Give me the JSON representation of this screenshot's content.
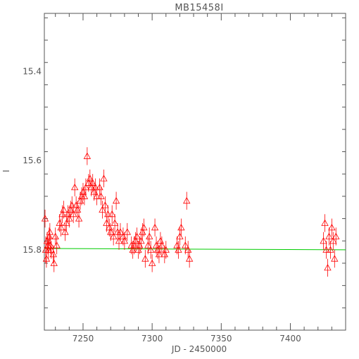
{
  "chart_data": {
    "type": "scatter",
    "title": "MB15458I",
    "xlabel": "JD - 2450000",
    "ylabel": "I",
    "xlim": [
      7222,
      7440
    ],
    "ylim": [
      15.98,
      15.27
    ],
    "y_inverted": true,
    "x_ticks": [
      7250,
      7300,
      7350,
      7400
    ],
    "y_ticks": [
      15.4,
      15.6,
      15.8
    ],
    "x_tick_labels": [
      "7250",
      "7300",
      "7350",
      "7400"
    ],
    "y_tick_labels": [
      "15.4",
      "15.6",
      "15.8"
    ],
    "grid": false,
    "colors": {
      "points": "#ff0000",
      "model": "#00cc00",
      "axes": "#555555"
    },
    "marker": "triangle-open-with-errorbars",
    "model_line": {
      "x": [
        7222,
        7440
      ],
      "y": [
        15.797,
        15.8
      ]
    },
    "points": [
      {
        "x": 7222.5,
        "y": 15.73,
        "err": 0.02
      },
      {
        "x": 7223.0,
        "y": 15.8,
        "err": 0.03
      },
      {
        "x": 7223.5,
        "y": 15.82,
        "err": 0.02
      },
      {
        "x": 7224.0,
        "y": 15.78,
        "err": 0.02
      },
      {
        "x": 7224.5,
        "y": 15.79,
        "err": 0.02
      },
      {
        "x": 7225.0,
        "y": 15.8,
        "err": 0.02
      },
      {
        "x": 7225.5,
        "y": 15.77,
        "err": 0.02
      },
      {
        "x": 7226.0,
        "y": 15.76,
        "err": 0.02
      },
      {
        "x": 7226.5,
        "y": 15.79,
        "err": 0.02
      },
      {
        "x": 7227.0,
        "y": 15.8,
        "err": 0.02
      },
      {
        "x": 7228.5,
        "y": 15.81,
        "err": 0.02
      },
      {
        "x": 7229.0,
        "y": 15.83,
        "err": 0.02
      },
      {
        "x": 7230.0,
        "y": 15.77,
        "err": 0.02
      },
      {
        "x": 7231.0,
        "y": 15.79,
        "err": 0.02
      },
      {
        "x": 7233.0,
        "y": 15.74,
        "err": 0.02
      },
      {
        "x": 7234.0,
        "y": 15.75,
        "err": 0.02
      },
      {
        "x": 7235.0,
        "y": 15.72,
        "err": 0.02
      },
      {
        "x": 7236.0,
        "y": 15.71,
        "err": 0.02
      },
      {
        "x": 7237.0,
        "y": 15.76,
        "err": 0.02
      },
      {
        "x": 7238.0,
        "y": 15.74,
        "err": 0.02
      },
      {
        "x": 7239.0,
        "y": 15.72,
        "err": 0.02
      },
      {
        "x": 7240.0,
        "y": 15.73,
        "err": 0.02
      },
      {
        "x": 7241.0,
        "y": 15.71,
        "err": 0.02
      },
      {
        "x": 7242.0,
        "y": 15.7,
        "err": 0.02
      },
      {
        "x": 7243.0,
        "y": 15.72,
        "err": 0.02
      },
      {
        "x": 7244.0,
        "y": 15.66,
        "err": 0.02
      },
      {
        "x": 7245.0,
        "y": 15.7,
        "err": 0.02
      },
      {
        "x": 7246.0,
        "y": 15.71,
        "err": 0.02
      },
      {
        "x": 7247.0,
        "y": 15.73,
        "err": 0.02
      },
      {
        "x": 7248.0,
        "y": 15.69,
        "err": 0.02
      },
      {
        "x": 7249.0,
        "y": 15.68,
        "err": 0.02
      },
      {
        "x": 7250.0,
        "y": 15.67,
        "err": 0.02
      },
      {
        "x": 7251.0,
        "y": 15.68,
        "err": 0.02
      },
      {
        "x": 7252.0,
        "y": 15.66,
        "err": 0.02
      },
      {
        "x": 7253.0,
        "y": 15.59,
        "err": 0.02
      },
      {
        "x": 7254.0,
        "y": 15.65,
        "err": 0.02
      },
      {
        "x": 7255.0,
        "y": 15.64,
        "err": 0.02
      },
      {
        "x": 7256.0,
        "y": 15.66,
        "err": 0.02
      },
      {
        "x": 7257.0,
        "y": 15.65,
        "err": 0.02
      },
      {
        "x": 7258.0,
        "y": 15.67,
        "err": 0.02
      },
      {
        "x": 7259.0,
        "y": 15.66,
        "err": 0.02
      },
      {
        "x": 7260.0,
        "y": 15.68,
        "err": 0.02
      },
      {
        "x": 7262.0,
        "y": 15.66,
        "err": 0.02
      },
      {
        "x": 7263.0,
        "y": 15.68,
        "err": 0.02
      },
      {
        "x": 7264.0,
        "y": 15.71,
        "err": 0.02
      },
      {
        "x": 7265.0,
        "y": 15.64,
        "err": 0.02
      },
      {
        "x": 7266.0,
        "y": 15.7,
        "err": 0.02
      },
      {
        "x": 7267.0,
        "y": 15.74,
        "err": 0.02
      },
      {
        "x": 7268.0,
        "y": 15.72,
        "err": 0.02
      },
      {
        "x": 7269.0,
        "y": 15.75,
        "err": 0.02
      },
      {
        "x": 7270.0,
        "y": 15.76,
        "err": 0.02
      },
      {
        "x": 7271.0,
        "y": 15.72,
        "err": 0.02
      },
      {
        "x": 7272.0,
        "y": 15.77,
        "err": 0.02
      },
      {
        "x": 7273.0,
        "y": 15.74,
        "err": 0.02
      },
      {
        "x": 7274.0,
        "y": 15.69,
        "err": 0.02
      },
      {
        "x": 7275.0,
        "y": 15.76,
        "err": 0.02
      },
      {
        "x": 7276.0,
        "y": 15.78,
        "err": 0.02
      },
      {
        "x": 7277.0,
        "y": 15.76,
        "err": 0.02
      },
      {
        "x": 7279.0,
        "y": 15.77,
        "err": 0.02
      },
      {
        "x": 7280.0,
        "y": 15.78,
        "err": 0.02
      },
      {
        "x": 7282.0,
        "y": 15.76,
        "err": 0.02
      },
      {
        "x": 7285.0,
        "y": 15.79,
        "err": 0.02
      },
      {
        "x": 7286.0,
        "y": 15.8,
        "err": 0.02
      },
      {
        "x": 7287.0,
        "y": 15.79,
        "err": 0.02
      },
      {
        "x": 7288.0,
        "y": 15.78,
        "err": 0.02
      },
      {
        "x": 7289.0,
        "y": 15.77,
        "err": 0.02
      },
      {
        "x": 7290.0,
        "y": 15.8,
        "err": 0.02
      },
      {
        "x": 7291.0,
        "y": 15.79,
        "err": 0.02
      },
      {
        "x": 7292.0,
        "y": 15.78,
        "err": 0.02
      },
      {
        "x": 7293.0,
        "y": 15.76,
        "err": 0.02
      },
      {
        "x": 7294.0,
        "y": 15.75,
        "err": 0.02
      },
      {
        "x": 7295.0,
        "y": 15.82,
        "err": 0.02
      },
      {
        "x": 7297.0,
        "y": 15.79,
        "err": 0.02
      },
      {
        "x": 7298.0,
        "y": 15.77,
        "err": 0.02
      },
      {
        "x": 7299.0,
        "y": 15.8,
        "err": 0.02
      },
      {
        "x": 7300.0,
        "y": 15.83,
        "err": 0.02
      },
      {
        "x": 7302.0,
        "y": 15.75,
        "err": 0.02
      },
      {
        "x": 7303.0,
        "y": 15.79,
        "err": 0.02
      },
      {
        "x": 7304.0,
        "y": 15.8,
        "err": 0.02
      },
      {
        "x": 7305.0,
        "y": 15.81,
        "err": 0.02
      },
      {
        "x": 7306.0,
        "y": 15.78,
        "err": 0.02
      },
      {
        "x": 7307.0,
        "y": 15.79,
        "err": 0.02
      },
      {
        "x": 7309.0,
        "y": 15.81,
        "err": 0.02
      },
      {
        "x": 7310.0,
        "y": 15.8,
        "err": 0.02
      },
      {
        "x": 7318.0,
        "y": 15.79,
        "err": 0.02
      },
      {
        "x": 7319.0,
        "y": 15.8,
        "err": 0.02
      },
      {
        "x": 7320.0,
        "y": 15.77,
        "err": 0.02
      },
      {
        "x": 7321.0,
        "y": 15.75,
        "err": 0.02
      },
      {
        "x": 7324.0,
        "y": 15.79,
        "err": 0.02
      },
      {
        "x": 7325.0,
        "y": 15.69,
        "err": 0.02
      },
      {
        "x": 7326.0,
        "y": 15.8,
        "err": 0.02
      },
      {
        "x": 7327.0,
        "y": 15.82,
        "err": 0.02
      },
      {
        "x": 7424.0,
        "y": 15.78,
        "err": 0.02
      },
      {
        "x": 7425.0,
        "y": 15.74,
        "err": 0.02
      },
      {
        "x": 7426.0,
        "y": 15.8,
        "err": 0.02
      },
      {
        "x": 7427.0,
        "y": 15.84,
        "err": 0.02
      },
      {
        "x": 7428.0,
        "y": 15.77,
        "err": 0.02
      },
      {
        "x": 7429.0,
        "y": 15.8,
        "err": 0.02
      },
      {
        "x": 7430.0,
        "y": 15.75,
        "err": 0.02
      },
      {
        "x": 7431.0,
        "y": 15.78,
        "err": 0.02
      },
      {
        "x": 7432.0,
        "y": 15.82,
        "err": 0.02
      },
      {
        "x": 7433.0,
        "y": 15.77,
        "err": 0.02
      }
    ]
  }
}
